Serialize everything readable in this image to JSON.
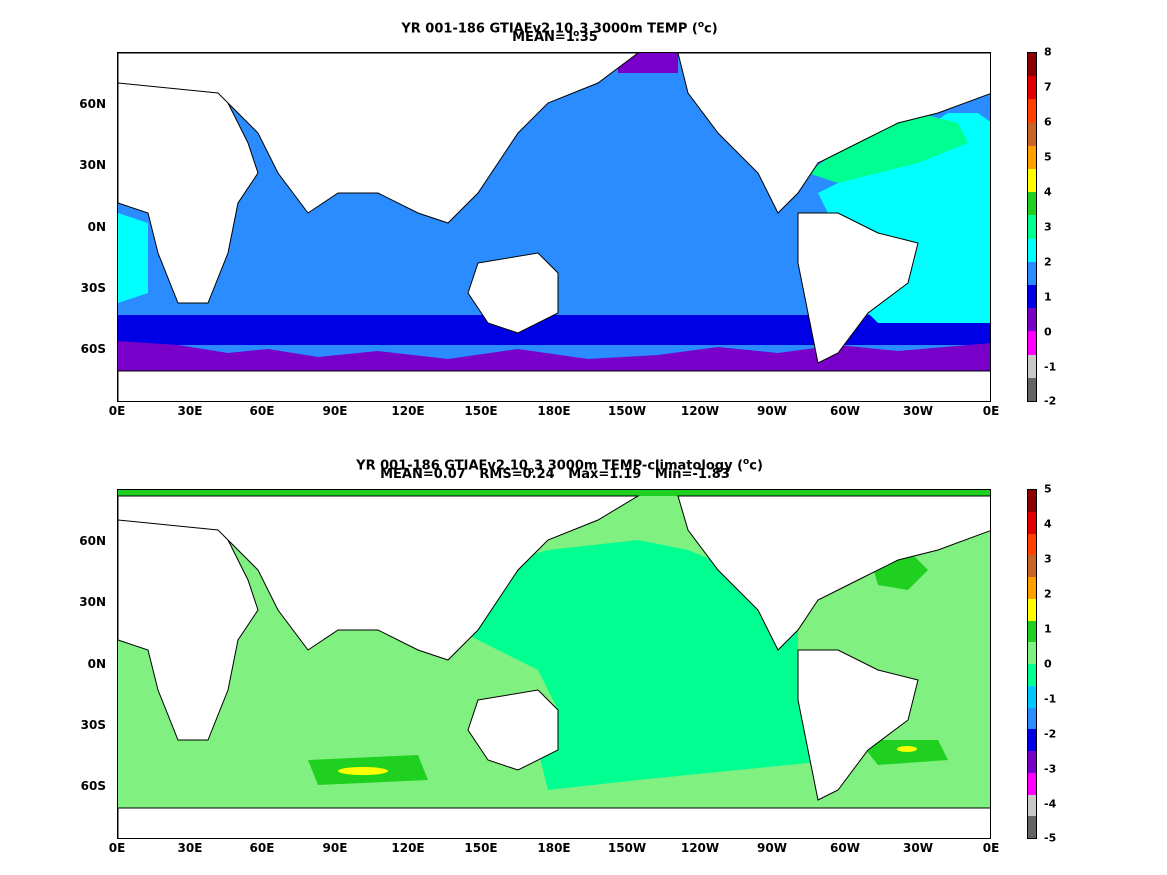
{
  "panel1": {
    "title": {
      "pre": "YR 001-186 GTIAFv2.10",
      "sub": "o",
      "mid": "3 3000m TEMP (",
      "sup": "o",
      "post": "c)"
    },
    "stats": "MEAN=1.35",
    "lat_labels": [
      "60N",
      "30N",
      "0N",
      "30S",
      "60S"
    ],
    "lon_labels": [
      "0E",
      "30E",
      "60E",
      "90E",
      "120E",
      "150E",
      "180E",
      "150W",
      "120W",
      "90W",
      "60W",
      "30W",
      "0E"
    ],
    "colorbar": {
      "labels": [
        "8",
        "7",
        "6",
        "5",
        "4",
        "3",
        "2",
        "1",
        "0",
        "-1",
        "-2"
      ],
      "colors": [
        "#8b0000",
        "#e00000",
        "#ff4000",
        "#c86428",
        "#ffa000",
        "#ffff00",
        "#20d020",
        "#00ff90",
        "#00ffff",
        "#2a8cff",
        "#0000e6",
        "#7800c8",
        "#ff00ff",
        "#c8c8c8",
        "#646464"
      ]
    }
  },
  "panel2": {
    "title": {
      "pre": "YR 001-186 GTIAFv2.10",
      "sub": "o",
      "mid": "3 3000m TEMP-climatology (",
      "sup": "o",
      "post": "c)"
    },
    "stats": "MEAN=0.07   RMS=0.24   Max=1.19   Min=-1.83",
    "lat_labels": [
      "60N",
      "30N",
      "0N",
      "30S",
      "60S"
    ],
    "lon_labels": [
      "0E",
      "30E",
      "60E",
      "90E",
      "120E",
      "150E",
      "180E",
      "150W",
      "120W",
      "90W",
      "60W",
      "30W",
      "0E"
    ],
    "colorbar": {
      "labels": [
        "5",
        "4",
        "3",
        "2",
        "1",
        "0",
        "-1",
        "-2",
        "-3",
        "-4",
        "-5"
      ],
      "colors": [
        "#8b0000",
        "#e00000",
        "#ff4000",
        "#c86428",
        "#ffa000",
        "#ffff00",
        "#20d020",
        "#80f080",
        "#00ff90",
        "#00c8ff",
        "#2a8cff",
        "#0000e6",
        "#7800c8",
        "#ff00ff",
        "#c8c8c8",
        "#646464"
      ]
    }
  },
  "palette": {
    "land": "#ffffff",
    "coast": "#000000",
    "p1_pacific": "#2a8cff",
    "p1_atlantic": "#00ffff",
    "p1_southern": "#0000e6",
    "p1_antarctic": "#7800c8",
    "p1_nat": "#00ff90",
    "p2_main": "#00ff90",
    "p2_light": "#80f080",
    "p2_green": "#20d020",
    "p2_yellow": "#ffff00"
  }
}
